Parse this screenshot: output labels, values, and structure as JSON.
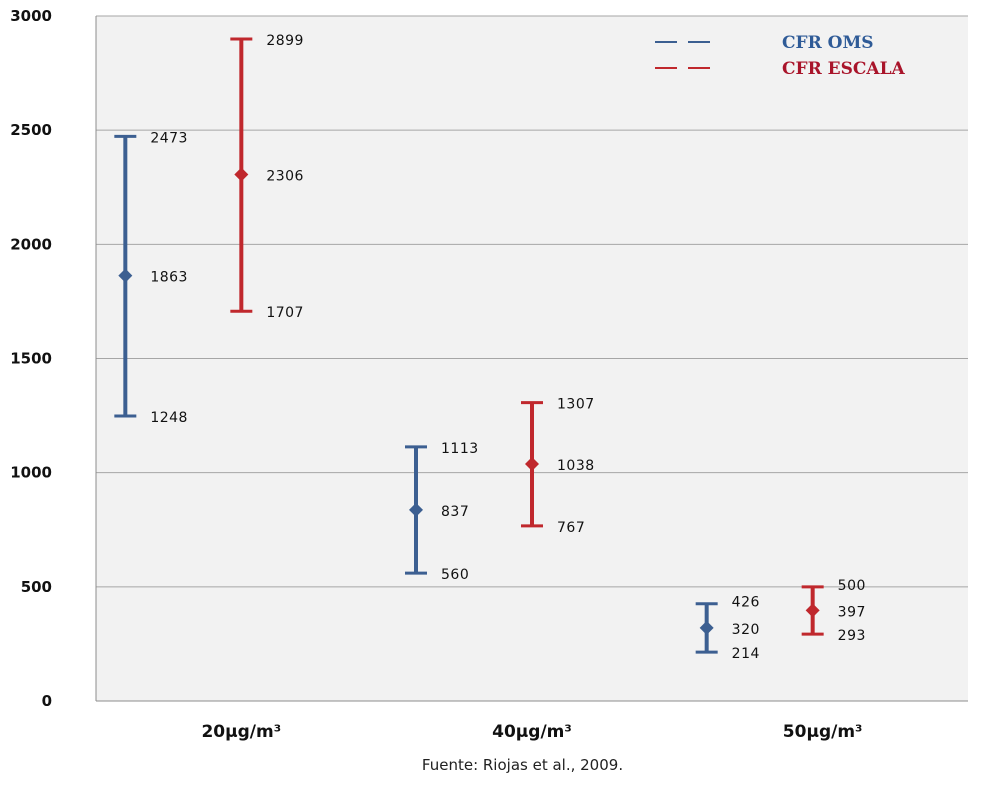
{
  "chart_data": {
    "type": "error-bar",
    "categories": [
      "20μg/m³",
      "40μg/m³",
      "50μg/m³"
    ],
    "ylim": [
      0,
      3000
    ],
    "yticks": [
      "0",
      "500",
      "1000",
      "1500",
      "2000",
      "2500",
      "3000"
    ],
    "grid": true,
    "legend_position": "top-right",
    "series": [
      {
        "name": "CFR OMS",
        "color": "#3c5f91",
        "points": [
          {
            "low": 1248,
            "mid": 1863,
            "high": 2473
          },
          {
            "low": 560,
            "mid": 837,
            "high": 1113
          },
          {
            "low": 214,
            "mid": 320,
            "high": 426
          }
        ]
      },
      {
        "name": "CFR ESCALA",
        "color": "#c0282d",
        "points": [
          {
            "low": 1707,
            "mid": 2306,
            "high": 2899
          },
          {
            "low": 767,
            "mid": 1038,
            "high": 1307
          },
          {
            "low": 293,
            "mid": 397,
            "high": 500
          }
        ]
      }
    ],
    "plot_background": "#f2f2f2",
    "gridline_color": "#a6a6a6",
    "legend_label_colors": [
      "#2f5b97",
      "#a9142a"
    ]
  },
  "source_note": "Fuente: Riojas et al., 2009."
}
